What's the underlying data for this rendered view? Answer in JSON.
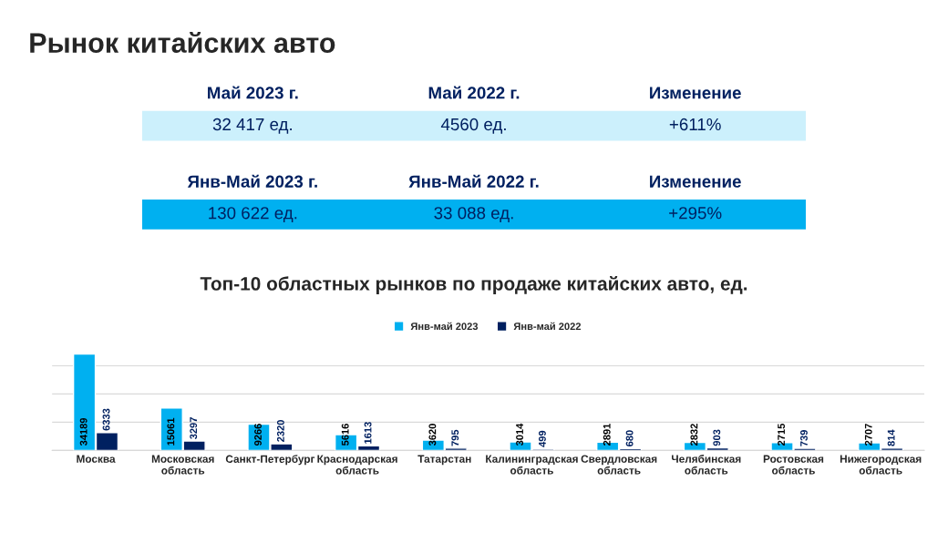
{
  "chart_data": [
    {
      "type": "other",
      "title": "Рынок китайских авто",
      "annotations": [
        "Май 2023 г.",
        "Май 2022 г.",
        "Изменение",
        "32 417 ед.",
        "4560 ед.",
        "+611%",
        "Янв-Май 2023 г.",
        "Янв-Май 2022 г.",
        "Изменение",
        "130 622 ед.",
        "33 088 ед.",
        "+295%"
      ]
    },
    {
      "type": "bar",
      "title": "Топ-10 областных рынков по продаже китайских авто, ед.",
      "categories": [
        "Москва",
        "Московская\nобласть",
        "Санкт-Петербург",
        "Краснодарская\nобласть",
        "Татарстан",
        "Калининградская\nобласть",
        "Свердловская\nобласть",
        "Челябинская\nобласть",
        "Ростовская\nобласть",
        "Нижегородская\nобласть"
      ],
      "series": [
        {
          "name": "Янв-май 2023",
          "color": "#00b0f0",
          "values": [
            34189,
            15061,
            9266,
            5616,
            3620,
            3014,
            2891,
            2832,
            2715,
            2707
          ]
        },
        {
          "name": "Янв-май 2022",
          "color": "#002060",
          "values": [
            6333,
            3297,
            2320,
            1613,
            795,
            499,
            680,
            903,
            739,
            814
          ]
        }
      ],
      "data_labels": true,
      "legend": "top",
      "grid": "y",
      "tick_labels": "x"
    }
  ]
}
